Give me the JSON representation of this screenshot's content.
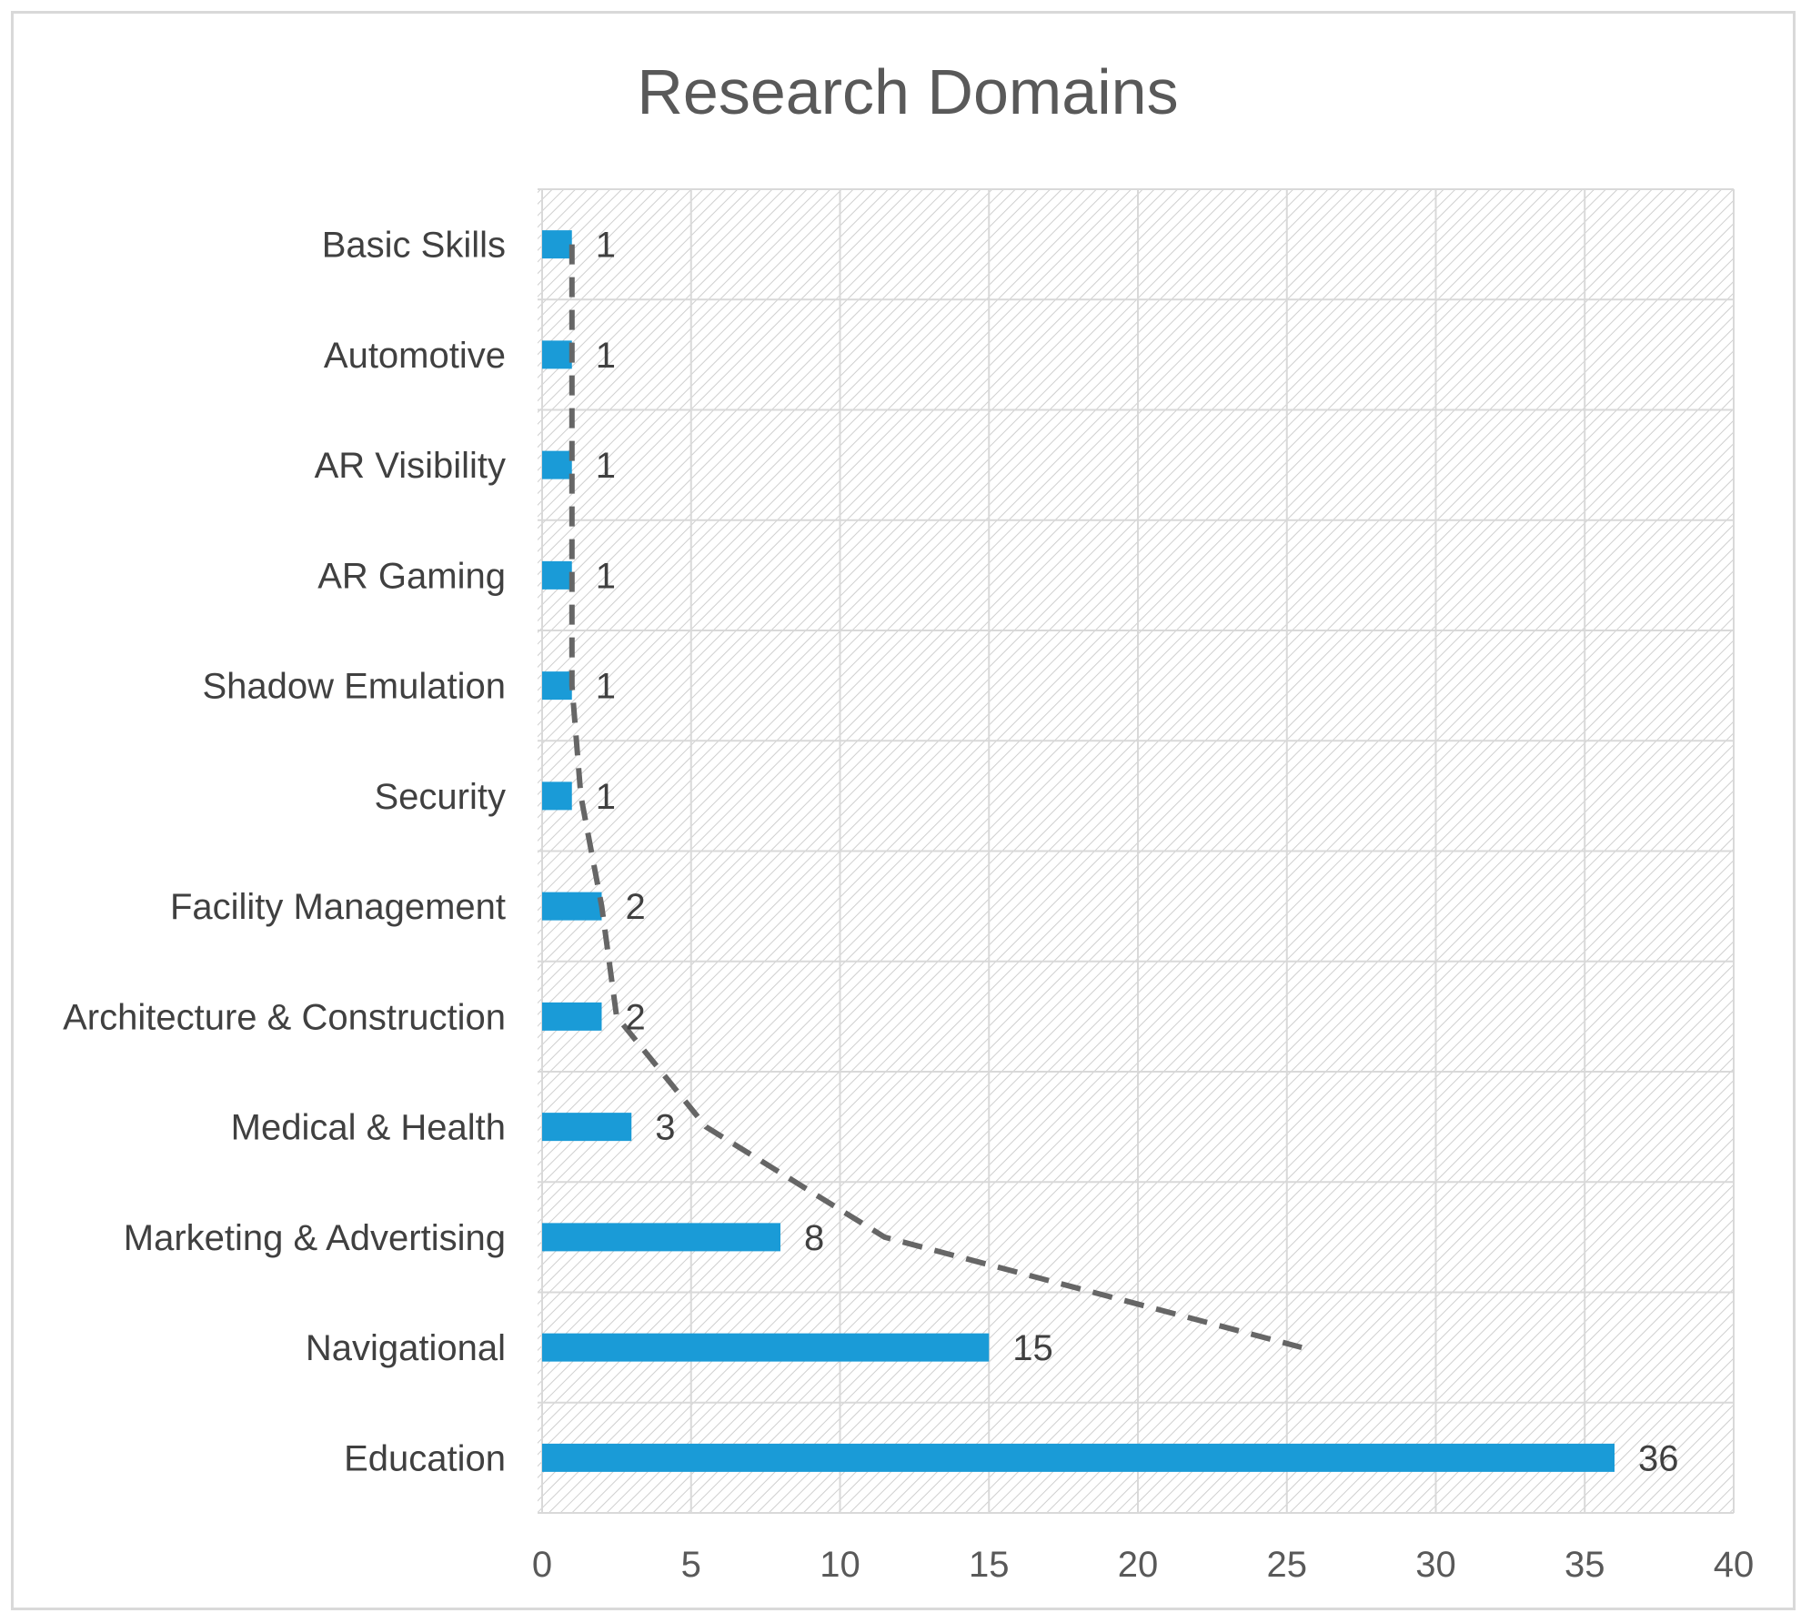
{
  "chart_data": {
    "type": "bar",
    "orientation": "horizontal",
    "title": "Research Domains",
    "xlabel": "",
    "ylabel": "",
    "categories": [
      "Basic Skills",
      "Automotive",
      "AR Visibility",
      "AR Gaming",
      "Shadow Emulation",
      "Security",
      "Facility Management",
      "Architecture & Construction",
      "Medical & Health",
      "Marketing & Advertising",
      "Navigational",
      "Education"
    ],
    "values": [
      1,
      1,
      1,
      1,
      1,
      1,
      2,
      2,
      3,
      8,
      15,
      36
    ],
    "data_labels": [
      "1",
      "1",
      "1",
      "1",
      "1",
      "1",
      "2",
      "2",
      "3",
      "8",
      "15",
      "36"
    ],
    "xlim": [
      0,
      40
    ],
    "xticks": [
      "0",
      "5",
      "10",
      "15",
      "20",
      "25",
      "30",
      "35",
      "40"
    ],
    "grid": true,
    "plot_background": "hatched",
    "legend": "none",
    "trendline": {
      "style": "dashed",
      "color": "#666666",
      "points": [
        {
          "category": "Basic Skills",
          "x": 1
        },
        {
          "category": "Automotive",
          "x": 1
        },
        {
          "category": "AR Visibility",
          "x": 1
        },
        {
          "category": "AR Gaming",
          "x": 1
        },
        {
          "category": "Shadow Emulation",
          "x": 1
        },
        {
          "category": "Security",
          "x": 1.3
        },
        {
          "category": "Facility Management",
          "x": 2
        },
        {
          "category": "Architecture & Construction",
          "x": 2.5
        },
        {
          "category": "Medical & Health",
          "x": 5.5
        },
        {
          "category": "Marketing & Advertising",
          "x": 11.5
        },
        {
          "category": "Navigational",
          "x": 25.5
        }
      ]
    },
    "colors": {
      "bar": "#1a9bd7",
      "grid": "#d9d9d9",
      "hatch": "#cfcfcf",
      "trendline": "#666666"
    }
  }
}
